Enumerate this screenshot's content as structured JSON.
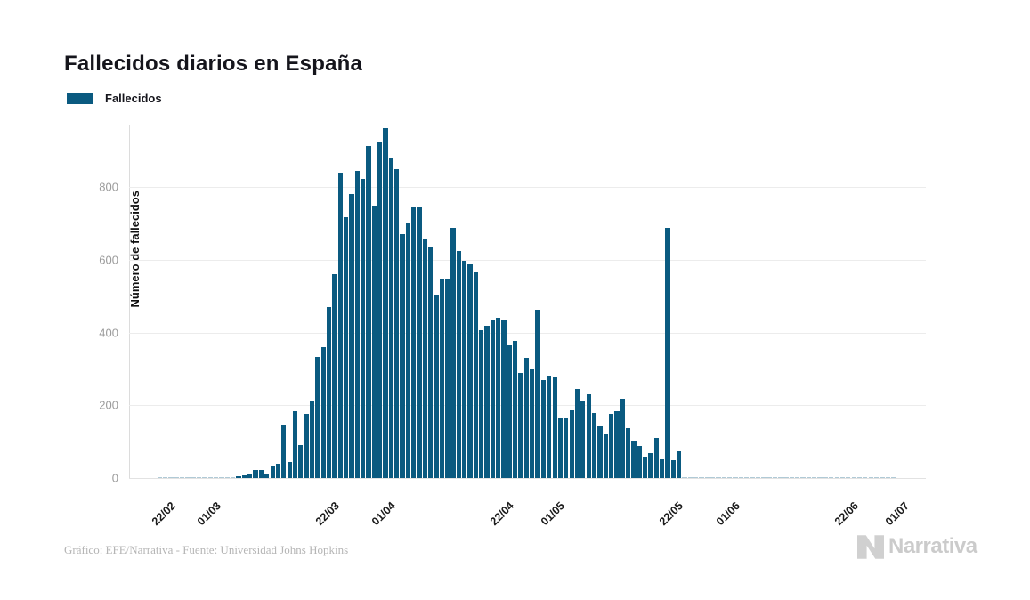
{
  "page": {
    "background": "#ffffff"
  },
  "header": {
    "title": "Fallecidos diarios en España"
  },
  "legend": {
    "label": "Fallecidos",
    "swatch_color": "#0a5a80"
  },
  "footer": {
    "credit": "Gráfico: EFE/Narrativa - Fuente: Universidad Johns Hopkins",
    "logo_text": "Narrativa",
    "logo_color": "#cbcbcb"
  },
  "chart_data": {
    "type": "bar",
    "title": "Fallecidos diarios en España",
    "series_name": "Fallecidos",
    "xlabel": "",
    "ylabel": "Número de fallecidos",
    "bar_color": "#0a5a80",
    "grid": "horizontal",
    "legend_position": "top-left",
    "ylim": [
      0,
      965
    ],
    "yticks": [
      0,
      200,
      400,
      600,
      800
    ],
    "xticks": [
      {
        "label": "22/02",
        "index": 5
      },
      {
        "label": "01/03",
        "index": 13
      },
      {
        "label": "22/03",
        "index": 34
      },
      {
        "label": "01/04",
        "index": 44
      },
      {
        "label": "22/04",
        "index": 65
      },
      {
        "label": "01/05",
        "index": 74
      },
      {
        "label": "22/05",
        "index": 95
      },
      {
        "label": "01/06",
        "index": 105
      },
      {
        "label": "22/06",
        "index": 126
      },
      {
        "label": "01/07",
        "index": 135
      }
    ],
    "x_range_note": "daily bars from 17/02 to 01/07",
    "values": [
      0,
      0,
      0,
      0,
      0,
      1,
      1,
      1,
      1,
      1,
      1,
      1,
      1,
      1,
      1,
      1,
      1,
      2,
      3,
      5,
      8,
      12,
      23,
      23,
      9,
      35,
      40,
      147,
      45,
      184,
      90,
      176,
      213,
      332,
      360,
      470,
      560,
      839,
      718,
      780,
      844,
      821,
      913,
      748,
      923,
      961,
      881,
      850,
      670,
      700,
      745,
      747,
      655,
      634,
      503,
      548,
      548,
      687,
      625,
      597,
      590,
      565,
      407,
      418,
      433,
      441,
      435,
      368,
      378,
      288,
      331,
      301,
      462,
      268,
      281,
      276,
      164,
      164,
      185,
      244,
      213,
      229,
      179,
      143,
      123,
      176,
      184,
      217,
      138,
      104,
      87,
      59,
      69,
      110,
      52,
      688,
      50,
      74,
      1,
      1,
      1,
      1,
      1,
      1,
      1,
      1,
      1,
      1,
      1,
      1,
      1,
      1,
      1,
      1,
      1,
      1,
      1,
      1,
      1,
      1,
      1,
      1,
      1,
      1,
      1,
      1,
      1,
      1,
      1,
      1,
      1,
      1,
      1,
      1,
      1,
      1
    ]
  }
}
